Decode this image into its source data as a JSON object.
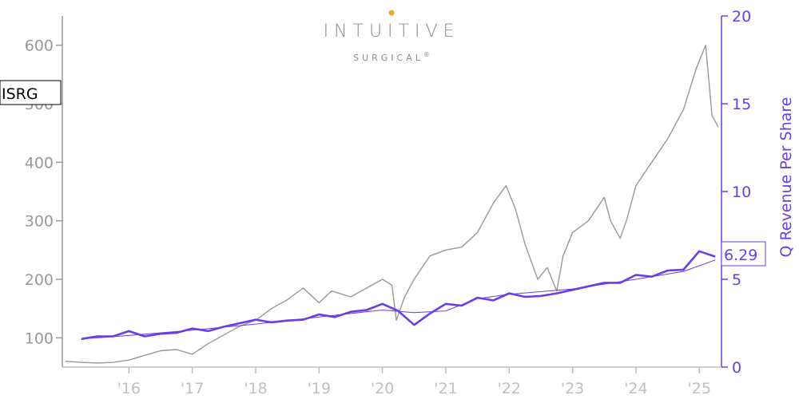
{
  "logo": {
    "main": "INTUITIVE",
    "sub": "SURGICAL",
    "reg": "®",
    "accent": "#f5a623"
  },
  "chart_data": {
    "type": "line",
    "ticker": "ISRG",
    "xlabel": "",
    "ylabel_left": "",
    "ylabel_right": "Q Revenue Per Share",
    "last_value_label": "6.29",
    "x_range": [
      2014.95,
      2025.35
    ],
    "x_ticks": [
      {
        "x": 2016,
        "label": "'16"
      },
      {
        "x": 2017,
        "label": "'17"
      },
      {
        "x": 2018,
        "label": "'18"
      },
      {
        "x": 2019,
        "label": "'19"
      },
      {
        "x": 2020,
        "label": "'20"
      },
      {
        "x": 2021,
        "label": "'21"
      },
      {
        "x": 2022,
        "label": "'22"
      },
      {
        "x": 2023,
        "label": "'23"
      },
      {
        "x": 2024,
        "label": "'24"
      },
      {
        "x": 2025,
        "label": "'25"
      }
    ],
    "ylim_left": [
      50,
      650
    ],
    "yticks_left": [
      100,
      200,
      300,
      400,
      500,
      600
    ],
    "ylim_right": [
      0,
      20
    ],
    "yticks_right": [
      0,
      5,
      10,
      15,
      20
    ],
    "colors": {
      "price": "#999999",
      "revenue": "#6a3de8",
      "left_axis": "#999999",
      "right_axis": "#6a3de8"
    },
    "series": [
      {
        "name": "ISRG",
        "axis": "left",
        "x": [
          2015.0,
          2015.25,
          2015.5,
          2015.75,
          2016.0,
          2016.25,
          2016.5,
          2016.75,
          2017.0,
          2017.25,
          2017.5,
          2017.75,
          2018.0,
          2018.25,
          2018.5,
          2018.75,
          2018.85,
          2019.0,
          2019.2,
          2019.5,
          2019.75,
          2020.0,
          2020.15,
          2020.22,
          2020.35,
          2020.5,
          2020.75,
          2021.0,
          2021.25,
          2021.5,
          2021.75,
          2021.95,
          2022.1,
          2022.25,
          2022.45,
          2022.6,
          2022.75,
          2022.85,
          2023.0,
          2023.25,
          2023.5,
          2023.6,
          2023.75,
          2023.85,
          2024.0,
          2024.25,
          2024.5,
          2024.75,
          2024.95,
          2025.1,
          2025.2,
          2025.3
        ],
        "values": [
          60,
          58,
          57,
          58,
          62,
          70,
          78,
          80,
          72,
          90,
          105,
          120,
          130,
          150,
          165,
          185,
          175,
          160,
          180,
          170,
          185,
          200,
          190,
          130,
          170,
          200,
          240,
          250,
          255,
          280,
          330,
          360,
          320,
          260,
          200,
          220,
          180,
          240,
          280,
          300,
          340,
          300,
          270,
          300,
          360,
          400,
          440,
          490,
          560,
          600,
          480,
          460
        ]
      },
      {
        "name": "Q Revenue Per Share",
        "axis": "right",
        "x": [
          2015.25,
          2015.5,
          2015.75,
          2016.0,
          2016.25,
          2016.5,
          2016.75,
          2017.0,
          2017.25,
          2017.5,
          2017.75,
          2018.0,
          2018.25,
          2018.5,
          2018.75,
          2019.0,
          2019.25,
          2019.5,
          2019.75,
          2020.0,
          2020.25,
          2020.5,
          2020.75,
          2021.0,
          2021.25,
          2021.5,
          2021.75,
          2022.0,
          2022.25,
          2022.5,
          2022.75,
          2023.0,
          2023.25,
          2023.5,
          2023.75,
          2024.0,
          2024.25,
          2024.5,
          2024.75,
          2025.0,
          2025.25
        ],
        "values": [
          1.6,
          1.75,
          1.75,
          2.05,
          1.75,
          1.9,
          1.95,
          2.2,
          2.05,
          2.3,
          2.5,
          2.7,
          2.55,
          2.65,
          2.7,
          3.0,
          2.85,
          3.15,
          3.25,
          3.6,
          3.2,
          2.4,
          3.05,
          3.6,
          3.5,
          3.95,
          3.8,
          4.2,
          4.0,
          4.05,
          4.2,
          4.4,
          4.6,
          4.8,
          4.8,
          5.25,
          5.15,
          5.5,
          5.55,
          6.6,
          6.29
        ]
      },
      {
        "axis": "right",
        "x": [
          2015.25,
          2016.0,
          2017.0,
          2018.0,
          2019.0,
          2020.0,
          2020.5,
          2021.0,
          2021.5,
          2022.0,
          2023.0,
          2024.0,
          2024.75,
          2025.25
        ],
        "values": [
          1.6,
          1.8,
          2.1,
          2.45,
          2.85,
          3.25,
          3.1,
          3.2,
          3.9,
          4.15,
          4.45,
          5.0,
          5.45,
          6.1
        ]
      }
    ]
  }
}
